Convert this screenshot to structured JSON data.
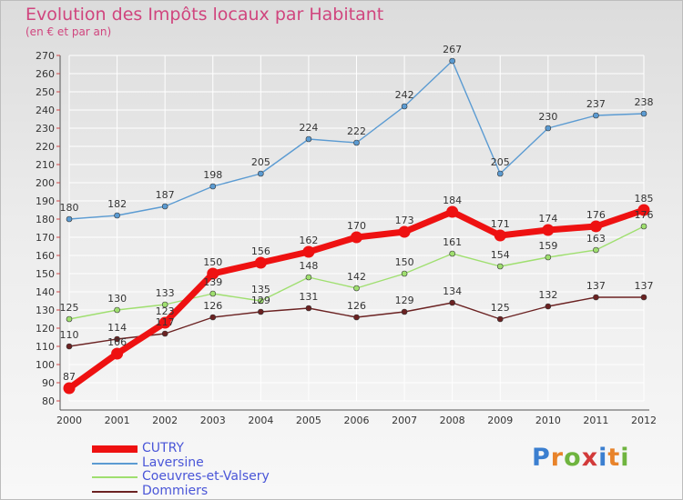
{
  "title": "Evolution des Impôts locaux par Habitant",
  "subtitle": "(en € et par an)",
  "logo_text": "Proxiti",
  "colors": {
    "title": "#d0457e",
    "legend_text": "#4a56d8",
    "gridline": "#ffffff",
    "axis": "#555555"
  },
  "chart_data": {
    "type": "line",
    "title": "Evolution des Impôts locaux par Habitant",
    "subtitle": "(en € et par an)",
    "xlabel": "",
    "ylabel": "",
    "x": [
      "2000",
      "2001",
      "2002",
      "2003",
      "2004",
      "2005",
      "2006",
      "2007",
      "2008",
      "2009",
      "2010",
      "2011",
      "2012"
    ],
    "ylim": [
      80,
      270
    ],
    "ytick_step": 10,
    "grid": true,
    "legend_position": "bottom-left",
    "series": [
      {
        "name": "CUTRY",
        "color": "#ee1111",
        "emphasis": true,
        "values": [
          87,
          106,
          123,
          150,
          156,
          162,
          170,
          173,
          184,
          171,
          174,
          176,
          185
        ]
      },
      {
        "name": "Laversine",
        "color": "#5b9bd2",
        "emphasis": false,
        "values": [
          180,
          182,
          187,
          198,
          205,
          224,
          222,
          242,
          267,
          205,
          230,
          237,
          238
        ]
      },
      {
        "name": "Coeuvres-et-Valsery",
        "color": "#9fdf6f",
        "emphasis": false,
        "values": [
          125,
          130,
          133,
          139,
          135,
          148,
          142,
          150,
          161,
          154,
          159,
          163,
          176
        ]
      },
      {
        "name": "Dommiers",
        "color": "#6b2222",
        "emphasis": false,
        "values": [
          110,
          114,
          117,
          126,
          129,
          131,
          126,
          129,
          134,
          125,
          132,
          137,
          137
        ]
      }
    ]
  }
}
